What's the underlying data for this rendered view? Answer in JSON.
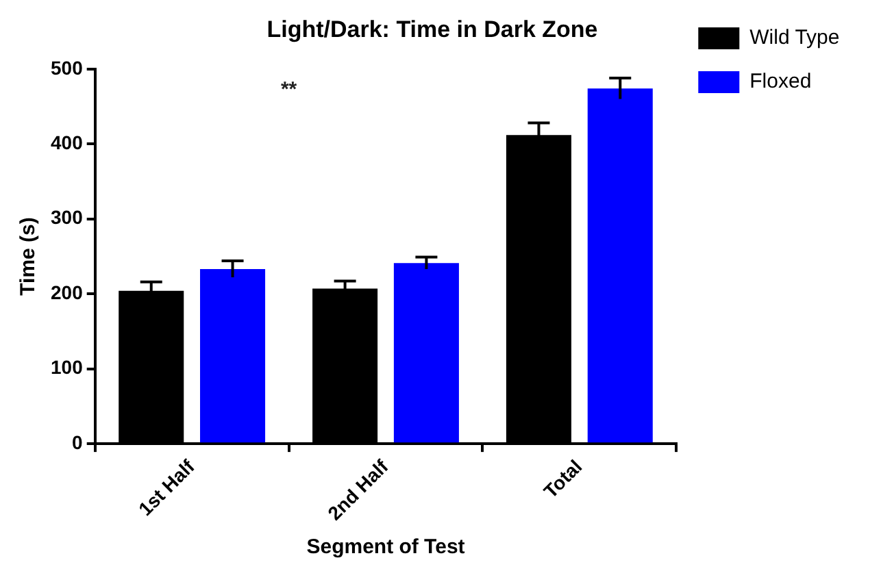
{
  "chart_data": {
    "type": "bar",
    "title": "Light/Dark: Time in Dark Zone",
    "xlabel": "Segment of Test",
    "ylabel": "Time (s)",
    "categories": [
      "1st Half",
      "2nd Half",
      "Total"
    ],
    "series": [
      {
        "name": "Wild Type",
        "color": "#000000",
        "values": [
          204,
          207,
          412
        ],
        "errors": [
          12,
          10,
          16
        ]
      },
      {
        "name": "Floxed",
        "color": "#0000ff",
        "values": [
          233,
          241,
          474
        ],
        "errors": [
          11,
          8,
          14
        ]
      }
    ],
    "ylim": [
      0,
      500
    ],
    "yticks": [
      0,
      100,
      200,
      300,
      400,
      500
    ],
    "grid": false,
    "legend": "top right",
    "annotations": [
      "**"
    ]
  }
}
